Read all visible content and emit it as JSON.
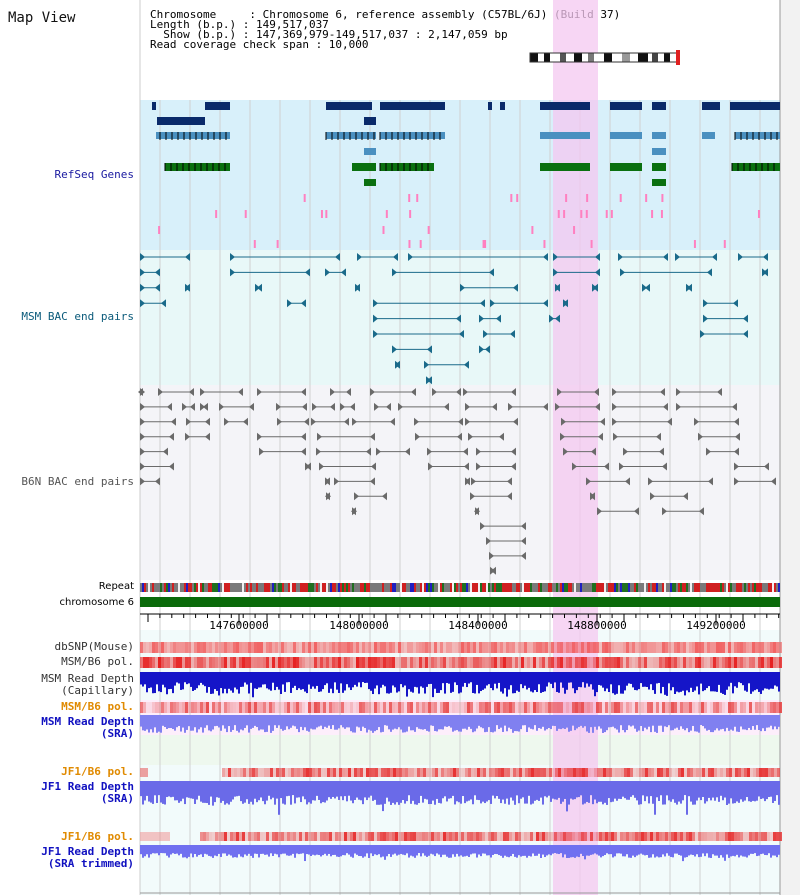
{
  "page": {
    "title": "Map View"
  },
  "info": {
    "chromosome_label": "Chromosome",
    "chromosome_value": "Chromosome 6, reference assembly (C57BL/6J) (Build 37)",
    "length_label": "Length (b.p.)",
    "length_value": "149,517,037",
    "show_label": "Show (b.p.)",
    "show_value": "147,369,979-149,517,037 : 2,147,059 bp",
    "coverage_label": "Read coverage check span",
    "coverage_value": "10,000",
    "line1": "Chromosome     : Chromosome 6, reference assembly (C57BL/6J) (Build 37)",
    "line2": "Length (b.p.) : 149,517,037",
    "line3": "  Show (b.p.) : 147,369,979-149,517,037 : 2,147,059 bp",
    "line4": "Read coverage check span : 10,000"
  },
  "tracks": {
    "refseq": "RefSeq Genes",
    "msm_bac": "MSM BAC end pairs",
    "b6n_bac": "B6N BAC end pairs",
    "repeat": "Repeat",
    "chromosome": "chromosome 6",
    "dbsnp": "dbSNP(Mouse)",
    "msm_b6_pol": "MSM/B6 pol.",
    "msm_depth_cap_1": "MSM Read Depth",
    "msm_depth_cap_2": "(Capillary)",
    "msm_b6_pol2": "MSM/B6 pol.",
    "msm_depth_sra_1": "MSM Read Depth",
    "msm_depth_sra_2": "(SRA)",
    "jf1_b6_pol": "JF1/B6 pol.",
    "jf1_depth_sra_1": "JF1 Read Depth",
    "jf1_depth_sra_2": "(SRA)",
    "jf1_b6_pol2": "JF1/B6 pol.",
    "jf1_depth_trim_1": "JF1 Read Depth",
    "jf1_depth_trim_2": "(SRA trimmed)"
  },
  "axis": {
    "ticks": [
      "147600000",
      "148000000",
      "148400000",
      "148800000",
      "149200000"
    ]
  },
  "colors": {
    "refseq_bg": "#d8f0fa",
    "msm_bg": "#e8f8f8",
    "b6n_bg": "#f4f4f8",
    "highlight": "#f4c8f0",
    "refseq_label": "#1a1aa0",
    "msm_label": "#0a5a7a",
    "b6n_label": "#555555",
    "pol_orange": "#e08a00",
    "depth_blue": "#1010c0"
  }
}
